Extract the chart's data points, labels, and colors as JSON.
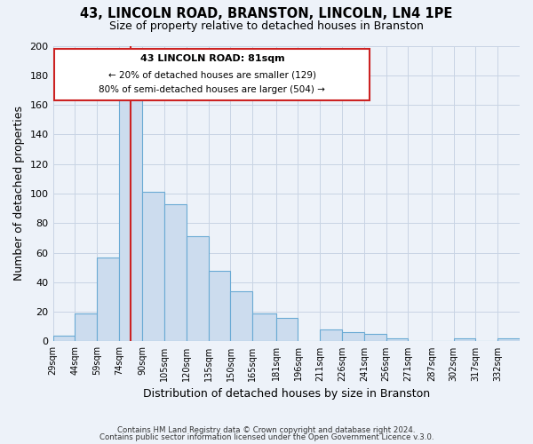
{
  "title": "43, LINCOLN ROAD, BRANSTON, LINCOLN, LN4 1PE",
  "subtitle": "Size of property relative to detached houses in Branston",
  "xlabel": "Distribution of detached houses by size in Branston",
  "ylabel": "Number of detached properties",
  "bin_labels": [
    "29sqm",
    "44sqm",
    "59sqm",
    "74sqm",
    "90sqm",
    "105sqm",
    "120sqm",
    "135sqm",
    "150sqm",
    "165sqm",
    "181sqm",
    "196sqm",
    "211sqm",
    "226sqm",
    "241sqm",
    "256sqm",
    "271sqm",
    "287sqm",
    "302sqm",
    "317sqm",
    "332sqm"
  ],
  "bar_heights": [
    4,
    19,
    57,
    165,
    101,
    93,
    71,
    48,
    34,
    19,
    16,
    0,
    8,
    6,
    5,
    2,
    0,
    0,
    2,
    0,
    2
  ],
  "bar_color": "#ccdcee",
  "bar_edge_color": "#6aaad4",
  "grid_color": "#c8d4e4",
  "background_color": "#edf2f9",
  "vline_color": "#cc2222",
  "ylim": [
    0,
    200
  ],
  "yticks": [
    0,
    20,
    40,
    60,
    80,
    100,
    120,
    140,
    160,
    180,
    200
  ],
  "annotation_title": "43 LINCOLN ROAD: 81sqm",
  "annotation_line1": "← 20% of detached houses are smaller (129)",
  "annotation_line2": "80% of semi-detached houses are larger (504) →",
  "footer1": "Contains HM Land Registry data © Crown copyright and database right 2024.",
  "footer2": "Contains public sector information licensed under the Open Government Licence v.3.0.",
  "x_starts": [
    29,
    44,
    59,
    74,
    90,
    105,
    120,
    135,
    150,
    165,
    181,
    196,
    211,
    226,
    241,
    256,
    271,
    287,
    302,
    317,
    332
  ],
  "vline_x": 82
}
